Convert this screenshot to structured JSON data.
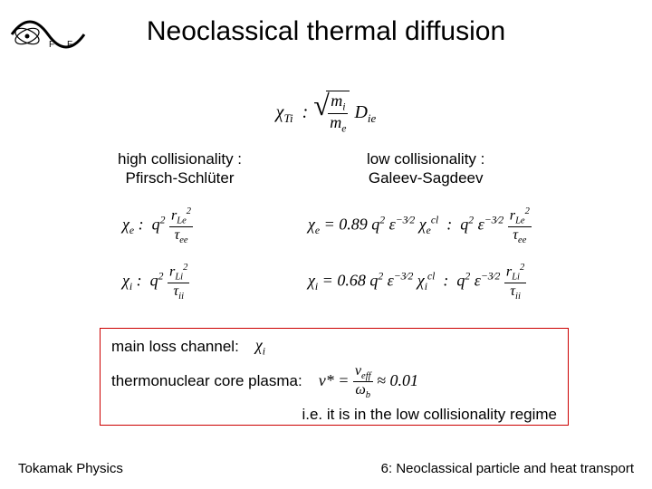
{
  "title": "Neoclassical thermal diffusion",
  "logo": {
    "name": "institute-logo"
  },
  "eq_top_html": "χ<sub>Ti</sub> &nbsp;:&nbsp; <span class='sqrt'><span class='rad'><span class='frac'><span class='num'>m<sub>i</sub></span><span class='den'>m<sub>e</sub></span></span></span></span> D<sub>ie</sub>",
  "col_left": {
    "line1": "high collisionality :",
    "line2": "Pfirsch-Schlüter"
  },
  "col_right": {
    "line1": "low collisionality :",
    "line2": "Galeev-Sagdeev"
  },
  "eq_left_e_html": "χ<sub>e</sub> : &nbsp;q<sup>2</sup> <span class='frac'><span class='num'>r<sub>Le</sub><sup>2</sup></span><span class='den'>τ<sub>ee</sub></span></span>",
  "eq_left_i_html": "χ<sub>i</sub> : &nbsp;q<sup>2</sup> <span class='frac'><span class='num'>r<sub>Li</sub><sup>2</sup></span><span class='den'>τ<sub>ii</sub></span></span>",
  "eq_right_e_html": "χ<sub>e</sub> = 0.89 q<sup>2</sup> ε<sup>&#8722;3&#8260;2</sup> χ<sub>e</sub><sup>cl</sup> &nbsp;:&nbsp; q<sup>2</sup> ε<sup>&#8722;3&#8260;2</sup> <span class='frac'><span class='num'>r<sub>Le</sub><sup>2</sup></span><span class='den'>τ<sub>ee</sub></span></span>",
  "eq_right_i_html": "χ<sub>i</sub> = 0.68 q<sup>2</sup> ε<sup>&#8722;3&#8260;2</sup> χ<sub>i</sub><sup>cl</sup> &nbsp;:&nbsp; q<sup>2</sup> ε<sup>&#8722;3&#8260;2</sup> <span class='frac'><span class='num'>r<sub>Li</sub><sup>2</sup></span><span class='den'>τ<sub>ii</sub></span></span>",
  "box": {
    "row1_label": "main loss channel:",
    "row1_eq_html": "χ<sub>i</sub>",
    "row2_label": "thermonuclear core plasma:",
    "row2_eq_html": "ν* = <span class='frac'><span class='num'>ν<sub>eff</sub></span><span class='den'>ω<sub>b</sub></span></span> ≈ 0.01",
    "row3": "i.e. it is in the low collisionality regime"
  },
  "footer": {
    "left": "Tokamak Physics",
    "right": "6: Neoclassical particle and heat transport"
  },
  "styles": {
    "title_fontsize": 30,
    "body_fontsize": 17,
    "eq_fontsize": 18,
    "box_border_color": "#cc0000",
    "background_color": "#ffffff",
    "text_color": "#000000"
  }
}
